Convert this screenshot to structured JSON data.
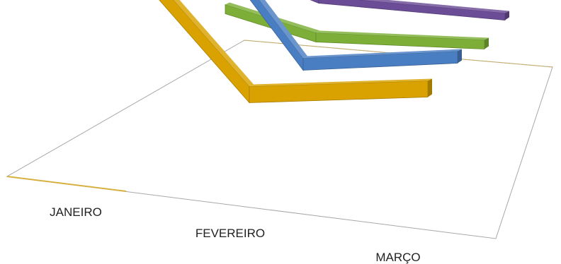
{
  "chart_data": {
    "type": "line",
    "style": "3d-ribbon",
    "categories": [
      "JANEIRO",
      "FEVEREIRO",
      "MARÇO"
    ],
    "series": [
      {
        "values": [
          100,
          45,
          45
        ],
        "color": "#D9A200"
      },
      {
        "values": [
          100,
          45,
          45
        ],
        "color": "#4A7EC2"
      },
      {
        "values": [
          45,
          45,
          45
        ],
        "color": "#7DAE37"
      },
      {
        "values": [
          45,
          45,
          45
        ],
        "color": "#6B4C96"
      }
    ],
    "ylim": [
      0,
      100
    ],
    "grid": false,
    "legend": "none"
  },
  "colors": {
    "floor_edge": "#a8a8a8",
    "floor_edge_accent": "#d8b040",
    "label_text": "#222222"
  }
}
